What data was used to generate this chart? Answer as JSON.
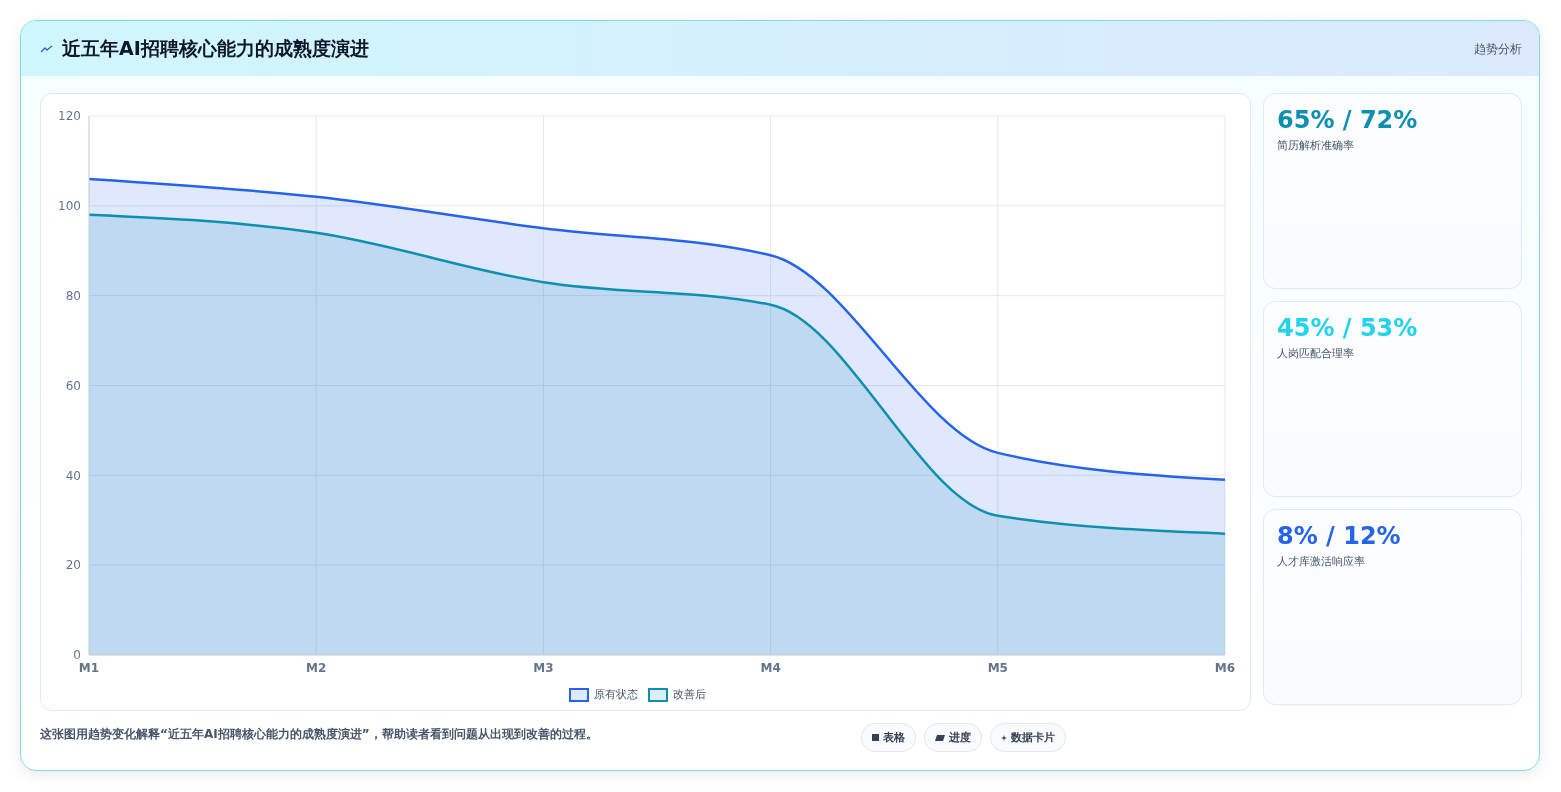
{
  "chart_data": [
    {
      "type": "area",
      "title": "近五年AI招聘核心能力的成熟度演进",
      "categories": [
        "M1",
        "M2",
        "M3",
        "M4",
        "M5",
        "M6"
      ],
      "series": [
        {
          "name": "原有状态",
          "color": "#2563eb",
          "values": [
            106,
            102,
            95,
            89,
            45,
            39
          ]
        },
        {
          "name": "改善后",
          "color": "#0e8fb0",
          "values": [
            98,
            94,
            83,
            78,
            31,
            27
          ]
        }
      ],
      "ylim": [
        0,
        120
      ],
      "yticks": [
        0,
        20,
        40,
        60,
        80,
        100,
        120
      ],
      "grid": true,
      "legend": "bottom",
      "annotations": [
        "这张图用趋势变化解释“近五年AI招聘核心能力的成熟度演进”，帮助读者看到问题从出现到改善的过程。",
        "表格",
        "进度",
        "数据卡片"
      ]
    },
    {
      "type": "other",
      "title": "趋势分析",
      "colors": [
        "#0e8fb0",
        "#22d3ee",
        "#2563eb"
      ],
      "annotations": [
        "65% / 72%",
        "简历解析准确率",
        "45% / 53%",
        "人岗匹配合理率",
        "8% / 12%",
        "人才库激活响应率"
      ]
    }
  ]
}
